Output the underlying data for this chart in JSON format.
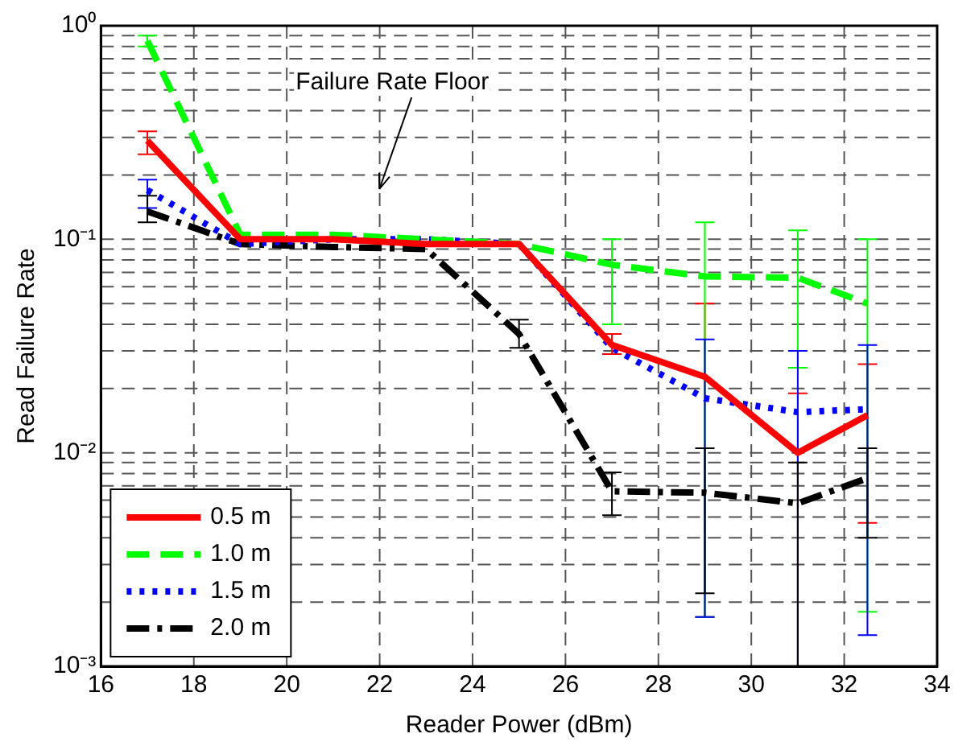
{
  "chart_data": {
    "type": "line",
    "xlabel": "Reader Power (dBm)",
    "ylabel": "Read Failure Rate",
    "x": [
      17,
      19,
      21,
      23,
      25,
      27,
      29,
      31,
      32.5
    ],
    "series": [
      {
        "name": "0.5 m",
        "color": "#ff0000",
        "line_style": "solid",
        "values": [
          0.29,
          0.1,
          0.1,
          0.095,
          0.095,
          0.032,
          0.0227,
          0.01,
          0.015
        ],
        "errors": [
          [
            0.25,
            0.32
          ],
          null,
          null,
          null,
          null,
          [
            0.029,
            0.036
          ],
          [
            0.0017,
            0.05
          ],
          [
            0.001,
            0.019
          ],
          [
            0.0047,
            0.026
          ]
        ]
      },
      {
        "name": "1.0 m",
        "color": "#00ff00",
        "line_style": "dashed",
        "values": [
          0.85,
          0.105,
          0.105,
          0.1,
          0.095,
          0.076,
          0.067,
          0.066,
          0.05
        ],
        "errors": [
          [
            0.8,
            0.9
          ],
          null,
          null,
          null,
          null,
          [
            0.04,
            0.1
          ],
          [
            0.0017,
            0.12
          ],
          [
            0.025,
            0.11
          ],
          [
            0.0018,
            0.1
          ]
        ]
      },
      {
        "name": "1.5 m",
        "color": "#0000ff",
        "line_style": "dotted",
        "values": [
          0.17,
          0.095,
          0.1,
          0.1,
          0.095,
          0.031,
          0.018,
          0.0155,
          0.016
        ],
        "errors": [
          [
            0.14,
            0.19
          ],
          null,
          null,
          null,
          null,
          null,
          [
            0.0017,
            0.034
          ],
          [
            0.001,
            0.03
          ],
          [
            0.0014,
            0.032
          ]
        ]
      },
      {
        "name": "2.0 m",
        "color": "#000000",
        "line_style": "dashdot",
        "values": [
          0.135,
          0.095,
          0.092,
          0.09,
          0.036,
          0.0066,
          0.0065,
          0.0058,
          0.0076
        ],
        "errors": [
          [
            0.12,
            0.16
          ],
          null,
          null,
          null,
          [
            0.031,
            0.042
          ],
          [
            0.0051,
            0.0081
          ],
          [
            0.0022,
            0.0105
          ],
          [
            0.001,
            0.009
          ],
          [
            0.004,
            0.0105
          ]
        ]
      }
    ],
    "xlim": [
      16,
      34
    ],
    "xticks": [
      16,
      18,
      20,
      22,
      24,
      26,
      28,
      30,
      32,
      34
    ],
    "ylim": [
      0.001,
      1
    ],
    "yticks": [
      {
        "value": 0.001,
        "label": "10⁻³"
      },
      {
        "value": 0.01,
        "label": "10⁻²"
      },
      {
        "value": 0.1,
        "label": "10⁻¹"
      },
      {
        "value": 1,
        "label": "10⁰"
      }
    ],
    "log": "y",
    "grid": true,
    "legend": "bottom left",
    "marker": "none",
    "annotations": [
      "Failure Rate Floor"
    ]
  }
}
